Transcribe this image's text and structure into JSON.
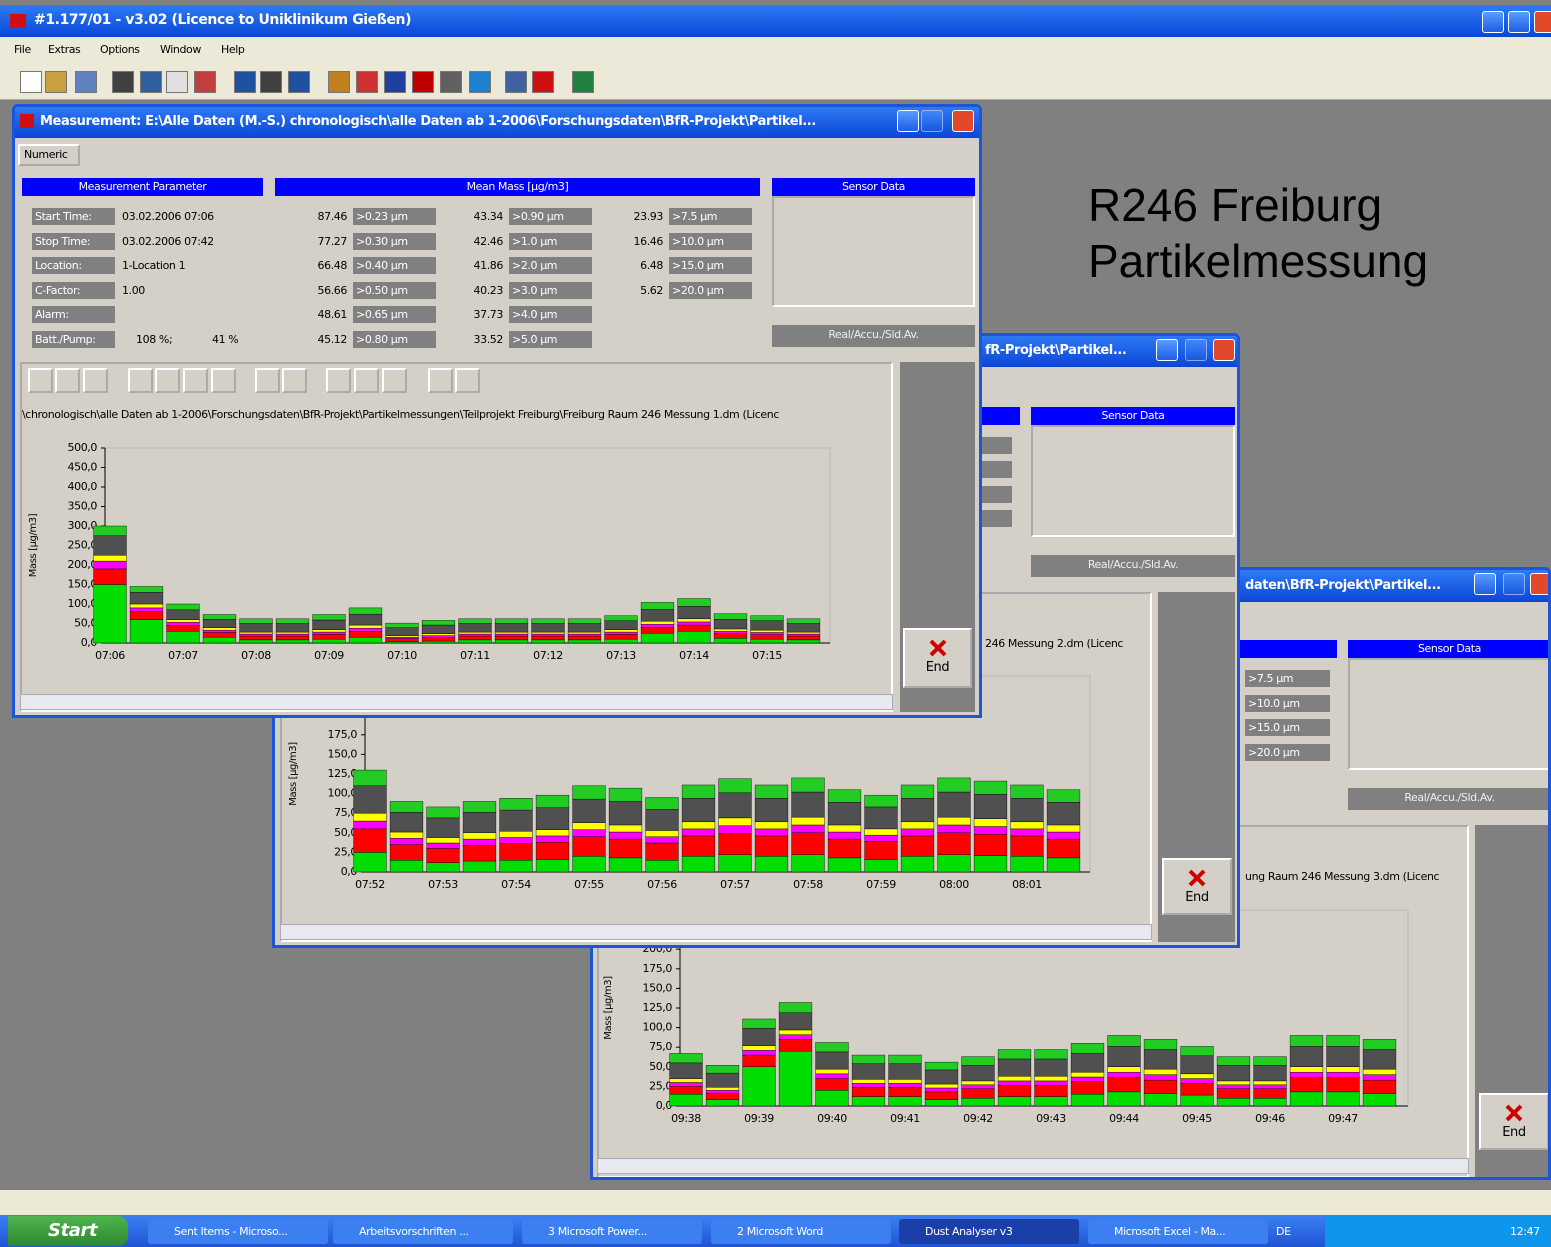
{
  "app": {
    "title": "#1.177/01 - v3.02 (Licence to Uniklinikum Gießen)",
    "menu": [
      "File",
      "Extras",
      "Options",
      "Window",
      "Help"
    ]
  },
  "windows": [
    {
      "title": "Measurement: E:\\Alle Daten (M.-S.) chronologisch\\alle Daten ab 1-2006\\Forschungsdaten\\BfR-Projekt\\Partikel...",
      "tab": "Numeric",
      "headers": [
        "Measurement Parameter",
        "Mean Mass [µg/m3]",
        "Sensor Data"
      ],
      "parameters": [
        {
          "label": "Start Time:",
          "values": [
            "03.02.2006 07:06"
          ]
        },
        {
          "label": "Stop Time:",
          "values": [
            "03.02.2006 07:42"
          ]
        },
        {
          "label": "Location:",
          "values": [
            "1-Location 1"
          ]
        },
        {
          "label": "C-Factor:",
          "values": [
            "1.00"
          ]
        },
        {
          "label": "Alarm:",
          "values": []
        },
        {
          "label": "Batt./Pump:",
          "values": [
            "108 %;",
            "41 %"
          ]
        }
      ],
      "mean_mass": [
        {
          "value": 87.46,
          "label": ">0.23 µm"
        },
        {
          "value": 77.27,
          "label": ">0.30 µm"
        },
        {
          "value": 66.48,
          "label": ">0.40 µm"
        },
        {
          "value": 56.66,
          "label": ">0.50 µm"
        },
        {
          "value": 48.61,
          "label": ">0.65 µm"
        },
        {
          "value": 45.12,
          "label": ">0.80 µm"
        },
        {
          "value": 43.34,
          "label": ">0.90 µm"
        },
        {
          "value": 42.46,
          "label": ">1.0 µm"
        },
        {
          "value": 41.86,
          "label": ">2.0 µm"
        },
        {
          "value": 40.23,
          "label": ">3.0 µm"
        },
        {
          "value": 37.73,
          "label": ">4.0 µm"
        },
        {
          "value": 33.52,
          "label": ">5.0 µm"
        },
        {
          "value": 23.93,
          "label": ">7.5 µm"
        },
        {
          "value": 16.46,
          "label": ">10.0 µm"
        },
        {
          "value": 6.48,
          "label": ">15.0 µm"
        },
        {
          "value": 5.62,
          "label": ">20.0 µm"
        }
      ],
      "mode_button": "Real/Accu./Sld.Av.",
      "path": "\\chronologisch\\alle Daten ab 1-2006\\Forschungsdaten\\BfR-Projekt\\Partikelmessungen\\Teilprojekt Freiburg\\Freiburg Raum 246 Messung 1.dm (Licenc",
      "end": "End"
    },
    {
      "title": "fR-Projekt\\Partikel...",
      "sensor_header": "Sensor Data",
      "mode_button": "Real/Accu./Sld.Av.",
      "path": "246 Messung 2.dm (Licenc",
      "end": "End"
    },
    {
      "title": "daten\\BfR-Projekt\\Partikel...",
      "sensor_header": "Sensor Data",
      "sizes": [
        ">7.5 µm",
        ">10.0 µm",
        ">15.0 µm",
        ">20.0 µm"
      ],
      "mode_button": "Real/Accu./Sld.Av.",
      "path": "ung Raum 246 Messung 3.dm (Licenc",
      "end": "End"
    }
  ],
  "annotation": [
    "R246 Freiburg",
    "Partikelmessung"
  ],
  "taskbar": {
    "start": "Start",
    "tasks": [
      "Sent Items - Microso...",
      "Arbeitsvorschriften ...",
      "3 Microsoft Power...",
      "2 Microsoft Word",
      "Dust Analyser v3",
      "Microsoft Excel - Ma..."
    ],
    "language": "DE",
    "clock": "12:47"
  },
  "chart_data": [
    {
      "type": "bar",
      "stacked": true,
      "y_label": "Mass [µg/m3]",
      "categories": [
        "07:06",
        null,
        "07:07",
        null,
        "07:08",
        null,
        "07:09",
        null,
        "07:10",
        null,
        "07:11",
        null,
        "07:12",
        null,
        "07:13",
        null,
        "07:14",
        null,
        "07:15",
        null
      ],
      "ylim": [
        0,
        500
      ],
      "yticks": [
        {
          "value": 0,
          "label": "0,0"
        },
        {
          "value": 50,
          "label": "50,0"
        },
        {
          "value": 100,
          "label": "100,0"
        },
        {
          "value": 150,
          "label": "150,0"
        },
        {
          "value": 200,
          "label": "200,0"
        },
        {
          "value": 250,
          "label": "250,0"
        },
        {
          "value": 300,
          "label": "300,0"
        },
        {
          "value": 350,
          "label": "350,0"
        },
        {
          "value": 400,
          "label": "400,0"
        },
        {
          "value": 450,
          "label": "450,0"
        },
        {
          "value": 500,
          "label": "500,0"
        }
      ],
      "series": [
        {
          "color": "#00dd00",
          "values": [
            150,
            60,
            30,
            15,
            8,
            8,
            10,
            15,
            3,
            5,
            8,
            8,
            8,
            8,
            10,
            25,
            30,
            12,
            10,
            8
          ]
        },
        {
          "color": "#ff0000",
          "values": [
            40,
            20,
            15,
            12,
            10,
            10,
            12,
            15,
            8,
            9,
            10,
            10,
            10,
            10,
            12,
            15,
            16,
            12,
            11,
            10
          ]
        },
        {
          "color": "#ff00ff",
          "values": [
            20,
            10,
            8,
            6,
            5,
            5,
            6,
            8,
            4,
            5,
            5,
            5,
            5,
            5,
            6,
            8,
            8,
            6,
            6,
            5
          ]
        },
        {
          "color": "#ffff00",
          "values": [
            15,
            10,
            7,
            6,
            5,
            5,
            6,
            8,
            4,
            5,
            5,
            5,
            5,
            5,
            6,
            8,
            8,
            6,
            6,
            5
          ]
        },
        {
          "color": "#505050",
          "values": [
            50,
            30,
            25,
            22,
            22,
            22,
            25,
            28,
            20,
            22,
            22,
            22,
            22,
            22,
            23,
            30,
            32,
            25,
            24,
            22
          ]
        },
        {
          "color": "#22cc22",
          "values": [
            25,
            15,
            15,
            12,
            12,
            12,
            14,
            16,
            12,
            12,
            12,
            12,
            12,
            12,
            13,
            18,
            20,
            14,
            13,
            12
          ]
        }
      ]
    },
    {
      "type": "bar",
      "stacked": true,
      "y_label": "Mass [µg/m3]",
      "categories": [
        "07:52",
        null,
        "07:53",
        null,
        "07:54",
        null,
        "07:55",
        null,
        "07:56",
        null,
        "07:57",
        null,
        "07:58",
        null,
        "07:59",
        null,
        "08:00",
        null,
        "08:01",
        null
      ],
      "ylim": [
        0,
        250
      ],
      "yticks": [
        {
          "value": 0,
          "label": "0,0"
        },
        {
          "value": 25,
          "label": "25,0"
        },
        {
          "value": 50,
          "label": "50,0"
        },
        {
          "value": 75,
          "label": "75,0"
        },
        {
          "value": 100,
          "label": "100,0"
        },
        {
          "value": 125,
          "label": "125,0"
        },
        {
          "value": 150,
          "label": "150,0"
        },
        {
          "value": 175,
          "label": "175,0"
        }
      ],
      "series": [
        {
          "color": "#00dd00",
          "values": [
            25,
            15,
            12,
            14,
            15,
            16,
            20,
            18,
            15,
            20,
            22,
            20,
            22,
            18,
            16,
            20,
            22,
            21,
            20,
            18
          ]
        },
        {
          "color": "#ff0000",
          "values": [
            30,
            20,
            18,
            20,
            21,
            22,
            25,
            24,
            22,
            26,
            27,
            26,
            28,
            24,
            23,
            26,
            28,
            27,
            26,
            24
          ]
        },
        {
          "color": "#ff00ff",
          "values": [
            10,
            8,
            7,
            8,
            8,
            8,
            9,
            9,
            8,
            9,
            10,
            9,
            10,
            9,
            8,
            9,
            10,
            10,
            9,
            9
          ]
        },
        {
          "color": "#ffff00",
          "values": [
            10,
            8,
            7,
            8,
            8,
            8,
            9,
            9,
            8,
            9,
            10,
            9,
            10,
            9,
            8,
            9,
            10,
            10,
            9,
            9
          ]
        },
        {
          "color": "#505050",
          "values": [
            35,
            25,
            25,
            26,
            27,
            28,
            30,
            30,
            27,
            30,
            32,
            30,
            32,
            29,
            28,
            30,
            32,
            31,
            30,
            29
          ]
        },
        {
          "color": "#22cc22",
          "values": [
            20,
            14,
            14,
            14,
            15,
            16,
            17,
            17,
            15,
            17,
            18,
            17,
            18,
            16,
            15,
            17,
            18,
            17,
            17,
            16
          ]
        }
      ]
    },
    {
      "type": "bar",
      "stacked": true,
      "y_label": "Mass [µg/m3]",
      "categories": [
        "09:38",
        null,
        "09:39",
        null,
        "09:40",
        null,
        "09:41",
        null,
        "09:42",
        null,
        "09:43",
        null,
        "09:44",
        null,
        "09:45",
        null,
        "09:46",
        null,
        "09:47",
        null
      ],
      "ylim": [
        0,
        250
      ],
      "yticks": [
        {
          "value": 0,
          "label": "0,0"
        },
        {
          "value": 25,
          "label": "25,0"
        },
        {
          "value": 50,
          "label": "50,0"
        },
        {
          "value": 75,
          "label": "75,0"
        },
        {
          "value": 100,
          "label": "100,0"
        },
        {
          "value": 125,
          "label": "125,0"
        },
        {
          "value": 150,
          "label": "150,0"
        },
        {
          "value": 175,
          "label": "175,0"
        },
        {
          "value": 200,
          "label": "200,0"
        }
      ],
      "series": [
        {
          "color": "#00dd00",
          "values": [
            15,
            8,
            50,
            70,
            20,
            12,
            12,
            8,
            10,
            12,
            12,
            15,
            18,
            16,
            14,
            10,
            10,
            18,
            18,
            16
          ]
        },
        {
          "color": "#ff0000",
          "values": [
            10,
            8,
            15,
            15,
            15,
            12,
            12,
            10,
            12,
            14,
            14,
            16,
            18,
            17,
            15,
            12,
            12,
            18,
            18,
            17
          ]
        },
        {
          "color": "#ff00ff",
          "values": [
            5,
            4,
            6,
            6,
            6,
            5,
            5,
            5,
            5,
            6,
            6,
            6,
            7,
            7,
            6,
            5,
            5,
            7,
            7,
            7
          ]
        },
        {
          "color": "#ffff00",
          "values": [
            5,
            4,
            6,
            6,
            6,
            5,
            5,
            5,
            5,
            6,
            6,
            6,
            7,
            7,
            6,
            5,
            5,
            7,
            7,
            7
          ]
        },
        {
          "color": "#505050",
          "values": [
            20,
            18,
            22,
            22,
            22,
            20,
            20,
            18,
            20,
            22,
            22,
            24,
            26,
            25,
            23,
            20,
            20,
            26,
            26,
            25
          ]
        },
        {
          "color": "#22cc22",
          "values": [
            12,
            10,
            12,
            13,
            12,
            11,
            11,
            10,
            11,
            12,
            12,
            13,
            14,
            13,
            12,
            11,
            11,
            14,
            14,
            13
          ]
        }
      ]
    }
  ]
}
